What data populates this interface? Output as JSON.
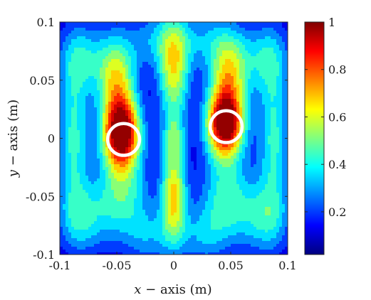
{
  "chart_data": {
    "type": "heatmap",
    "title": "",
    "xlabel": "x − axis (m)",
    "xlabel_var": "x",
    "xlabel_rest": " − axis (m)",
    "ylabel": "y − axis (m)",
    "ylabel_var": "y",
    "ylabel_rest": " − axis (m)",
    "xlim": [
      -0.1,
      0.1
    ],
    "ylim": [
      -0.1,
      0.1
    ],
    "x_ticks": [
      -0.1,
      -0.05,
      0,
      0.05,
      0.1
    ],
    "x_tick_labels": [
      "-0.1",
      "-0.05",
      "0",
      "0.05",
      "0.1"
    ],
    "y_ticks": [
      -0.1,
      -0.05,
      0,
      0.05,
      0.1
    ],
    "y_tick_labels": [
      "-0.1",
      "-0.05",
      "0",
      "0.05",
      "0.1"
    ],
    "colorbar": {
      "colormap": "jet",
      "range": [
        0.02,
        1.0
      ],
      "ticks": [
        0.2,
        0.4,
        0.6,
        0.8,
        1
      ],
      "tick_labels": [
        "0.2",
        "0.4",
        "0.6",
        "0.8",
        "1"
      ]
    },
    "contour_levels": [
      0.08,
      0.16,
      0.24,
      0.32,
      0.4,
      0.48,
      0.56,
      0.64,
      0.72,
      0.8,
      0.88,
      0.96
    ],
    "peaks": [
      {
        "name": "left-focus",
        "x": -0.045,
        "y": 0.0,
        "value": 1.0
      },
      {
        "name": "right-focus",
        "x": 0.045,
        "y": 0.01,
        "value": 1.0
      }
    ],
    "markers": [
      {
        "shape": "circle",
        "color": "#ffffff",
        "x": -0.044,
        "y": -0.001,
        "radius": 0.014
      },
      {
        "shape": "circle",
        "color": "#ffffff",
        "x": 0.046,
        "y": 0.01,
        "radius": 0.014
      }
    ]
  }
}
